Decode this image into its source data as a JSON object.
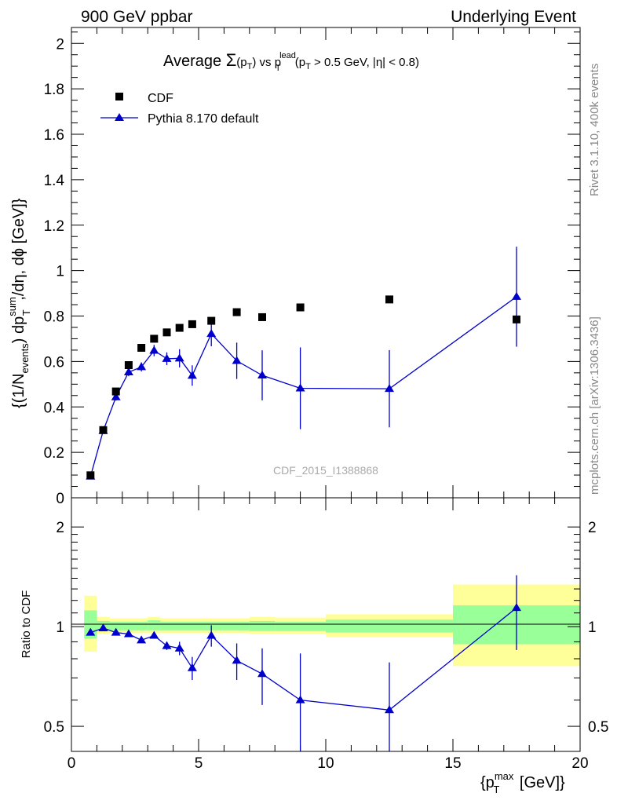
{
  "header": {
    "left": "900 GeV ppbar",
    "right": "Underlying Event",
    "side_top": "Rivet 3.1.10,  400k events",
    "side_bottom": "mcplots.cern.ch [arXiv:1306.3436]",
    "watermark": "CDF_2015_I1388868"
  },
  "chart_data": [
    {
      "type": "scatter",
      "panel": "main",
      "title_parts": {
        "t1": "Average ",
        "sigma": "Σ",
        "t2": "(p",
        "t2sub": "T",
        "t3": ") vs p",
        "t3sup": "lead",
        "t3sub": "T",
        "t4": " (p",
        "t4sub": "T",
        "t5": " > 0.5 GeV, |η| < 0.8)"
      },
      "ylabel_parts": {
        "p1": "{(1/N",
        "p1sub": "events",
        "p2": ") dp",
        "p2sup": "sum",
        "p2sub": "T",
        "p3": " ,/dη, dϕ [GeV]}"
      },
      "ylim": [
        0,
        2.07
      ],
      "xlim": [
        0,
        20
      ],
      "yticks": [
        {
          "v": 0,
          "label": "0"
        },
        {
          "v": 0.2,
          "label": "0.2"
        },
        {
          "v": 0.4,
          "label": "0.4"
        },
        {
          "v": 0.6,
          "label": "0.6"
        },
        {
          "v": 0.8,
          "label": "0.8"
        },
        {
          "v": 1.0,
          "label": "1"
        },
        {
          "v": 1.2,
          "label": "1.2"
        },
        {
          "v": 1.4,
          "label": "1.4"
        },
        {
          "v": 1.6,
          "label": "1.6"
        },
        {
          "v": 1.8,
          "label": "1.8"
        },
        {
          "v": 2.0,
          "label": "2"
        }
      ],
      "legend_position": "top-left",
      "series": [
        {
          "name": "CDF",
          "color": "#000000",
          "marker": "square",
          "x": [
            0.75,
            1.25,
            1.75,
            2.25,
            2.75,
            3.25,
            3.75,
            4.25,
            4.75,
            5.5,
            6.5,
            7.5,
            9.0,
            12.5,
            17.5
          ],
          "y": [
            0.099,
            0.298,
            0.468,
            0.584,
            0.66,
            0.7,
            0.728,
            0.748,
            0.764,
            0.779,
            0.817,
            0.795,
            0.838,
            0.873,
            0.785
          ]
        },
        {
          "name": "Pythia 8.170 default",
          "color": "#0000cc",
          "marker": "triangle",
          "x": [
            0.75,
            1.25,
            1.75,
            2.25,
            2.75,
            3.25,
            3.75,
            4.25,
            4.75,
            5.5,
            6.5,
            7.5,
            9.0,
            12.5,
            17.5
          ],
          "y": [
            0.094,
            0.295,
            0.443,
            0.553,
            0.576,
            0.648,
            0.612,
            0.614,
            0.538,
            0.722,
            0.603,
            0.539,
            0.482,
            0.48,
            0.885
          ],
          "yerr": [
            0.005,
            0.01,
            0.015,
            0.018,
            0.02,
            0.025,
            0.028,
            0.04,
            0.045,
            0.055,
            0.08,
            0.11,
            0.18,
            0.17,
            0.22
          ]
        }
      ]
    },
    {
      "type": "scatter",
      "panel": "ratio",
      "ylabel": "Ratio to CDF",
      "xlabel_parts": {
        "p1": "{p",
        "p1sup": "max",
        "p1sub": "T",
        "p2": " [GeV]}"
      },
      "scale": "log",
      "ylim": [
        0.42,
        2.45
      ],
      "xlim": [
        0,
        20
      ],
      "yticks": [
        {
          "v": 0.5,
          "label": "0.5"
        },
        {
          "v": 1,
          "label": "1"
        },
        {
          "v": 2,
          "label": "2"
        }
      ],
      "xticks": [
        {
          "v": 0,
          "label": "0"
        },
        {
          "v": 5,
          "label": "5"
        },
        {
          "v": 10,
          "label": "10"
        },
        {
          "v": 15,
          "label": "15"
        },
        {
          "v": 20,
          "label": "20"
        }
      ],
      "bands": {
        "yellow_color": "#ffff99",
        "green_color": "#99ff99",
        "bins": [
          {
            "lo": 0.5,
            "hi": 1.0,
            "yel": [
              0.84,
              1.24
            ],
            "grn": [
              0.92,
              1.12
            ]
          },
          {
            "lo": 1.0,
            "hi": 1.5,
            "yel": [
              0.95,
              1.07
            ],
            "grn": [
              0.975,
              1.04
            ]
          },
          {
            "lo": 1.5,
            "hi": 3.0,
            "yel": [
              0.955,
              1.06
            ],
            "grn": [
              0.975,
              1.035
            ]
          },
          {
            "lo": 3.0,
            "hi": 3.5,
            "yel": [
              0.955,
              1.07
            ],
            "grn": [
              0.975,
              1.045
            ]
          },
          {
            "lo": 3.5,
            "hi": 7.0,
            "yel": [
              0.955,
              1.06
            ],
            "grn": [
              0.975,
              1.035
            ]
          },
          {
            "lo": 7.0,
            "hi": 8.0,
            "yel": [
              0.95,
              1.07
            ],
            "grn": [
              0.97,
              1.04
            ]
          },
          {
            "lo": 8.0,
            "hi": 10.0,
            "yel": [
              0.95,
              1.065
            ],
            "grn": [
              0.97,
              1.035
            ]
          },
          {
            "lo": 10.0,
            "hi": 15.0,
            "yel": [
              0.93,
              1.09
            ],
            "grn": [
              0.96,
              1.05
            ]
          },
          {
            "lo": 15.0,
            "hi": 20.0,
            "yel": [
              0.76,
              1.34
            ],
            "grn": [
              0.885,
              1.16
            ]
          }
        ]
      },
      "series": [
        {
          "name": "Pythia 8.170 default",
          "color": "#0000cc",
          "x": [
            0.75,
            1.25,
            1.75,
            2.25,
            2.75,
            3.25,
            3.75,
            4.25,
            4.75,
            5.5,
            6.5,
            7.5,
            9.0,
            12.5,
            17.5
          ],
          "y": [
            0.96,
            0.99,
            0.96,
            0.95,
            0.91,
            0.94,
            0.875,
            0.86,
            0.75,
            0.94,
            0.79,
            0.72,
            0.6,
            0.56,
            1.14
          ],
          "yerr": [
            0.01,
            0.01,
            0.012,
            0.013,
            0.015,
            0.02,
            0.025,
            0.04,
            0.06,
            0.07,
            0.1,
            0.14,
            0.23,
            0.22,
            0.29
          ]
        }
      ]
    }
  ]
}
